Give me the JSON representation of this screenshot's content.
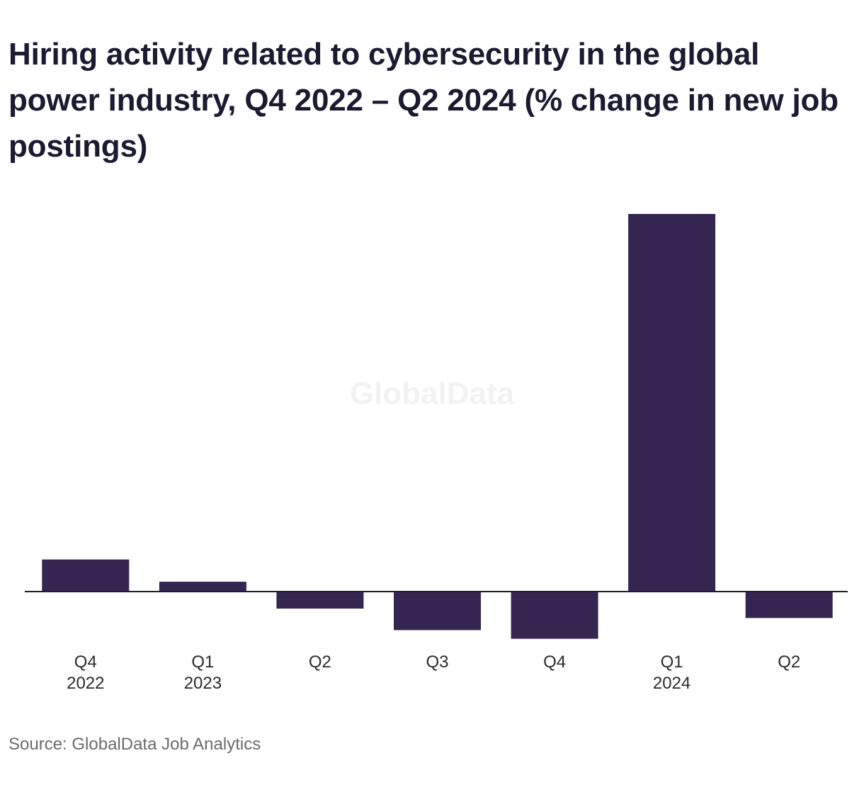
{
  "title": "Hiring activity related to cybersecurity in the global power industry, Q4 2022 – Q2 2024 (% change in new job postings)",
  "watermark": "GlobalData",
  "source": "Source: GlobalData Job Analytics",
  "colors": {
    "bar": "#352551",
    "axis": "#1c1a30",
    "title": "#1c1a30",
    "tick_label": "#2b2b2b",
    "source": "#6b6b6b",
    "watermark": "#f2f2f2"
  },
  "chart_data": {
    "type": "bar",
    "title": "Hiring activity related to cybersecurity in the global power industry, Q4 2022 – Q2 2024 (% change in new job postings)",
    "xlabel": "",
    "ylabel": "",
    "categories": [
      [
        "Q4",
        "2022"
      ],
      [
        "Q1",
        "2023"
      ],
      [
        "Q2",
        ""
      ],
      [
        "Q3",
        ""
      ],
      [
        "Q4",
        ""
      ],
      [
        "Q1",
        "2024"
      ],
      [
        "Q2",
        ""
      ]
    ],
    "values": [
      8.5,
      2.6,
      -4.5,
      -10.2,
      -12.5,
      100,
      -7.0
    ],
    "ylim": [
      -14,
      100
    ],
    "grid": false,
    "y_axis_visible": false
  }
}
